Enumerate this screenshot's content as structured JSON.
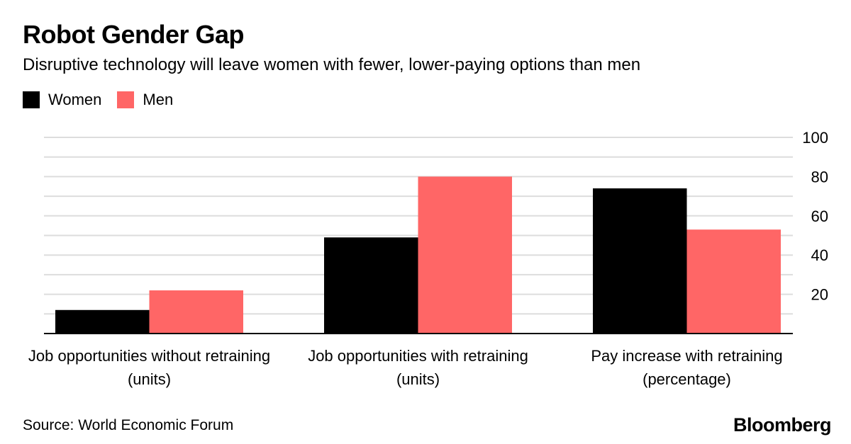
{
  "title": "Robot Gender Gap",
  "subtitle": "Disruptive technology will leave women with fewer, lower-paying options than men",
  "source": "Source: World Economic Forum",
  "brand": "Bloomberg",
  "colors": {
    "women": "#000000",
    "men": "#ff6666",
    "grid": "#dddddd",
    "axis": "#000000"
  },
  "chart_data": {
    "type": "bar",
    "title": "Robot Gender Gap",
    "categories": [
      [
        "Job opportunities without retraining",
        "(units)"
      ],
      [
        "Job opportunities with retraining",
        "(units)"
      ],
      [
        "Pay increase with retraining",
        "(percentage)"
      ]
    ],
    "series": [
      {
        "name": "Women",
        "values": [
          12,
          49,
          74
        ]
      },
      {
        "name": "Men",
        "values": [
          22,
          80,
          53
        ]
      }
    ],
    "ylim": [
      0,
      100
    ],
    "yticks": [
      20,
      40,
      60,
      80,
      100
    ],
    "grid_step": 10,
    "grid": true,
    "y_axis_side": "right",
    "legend_position": "top-left"
  }
}
